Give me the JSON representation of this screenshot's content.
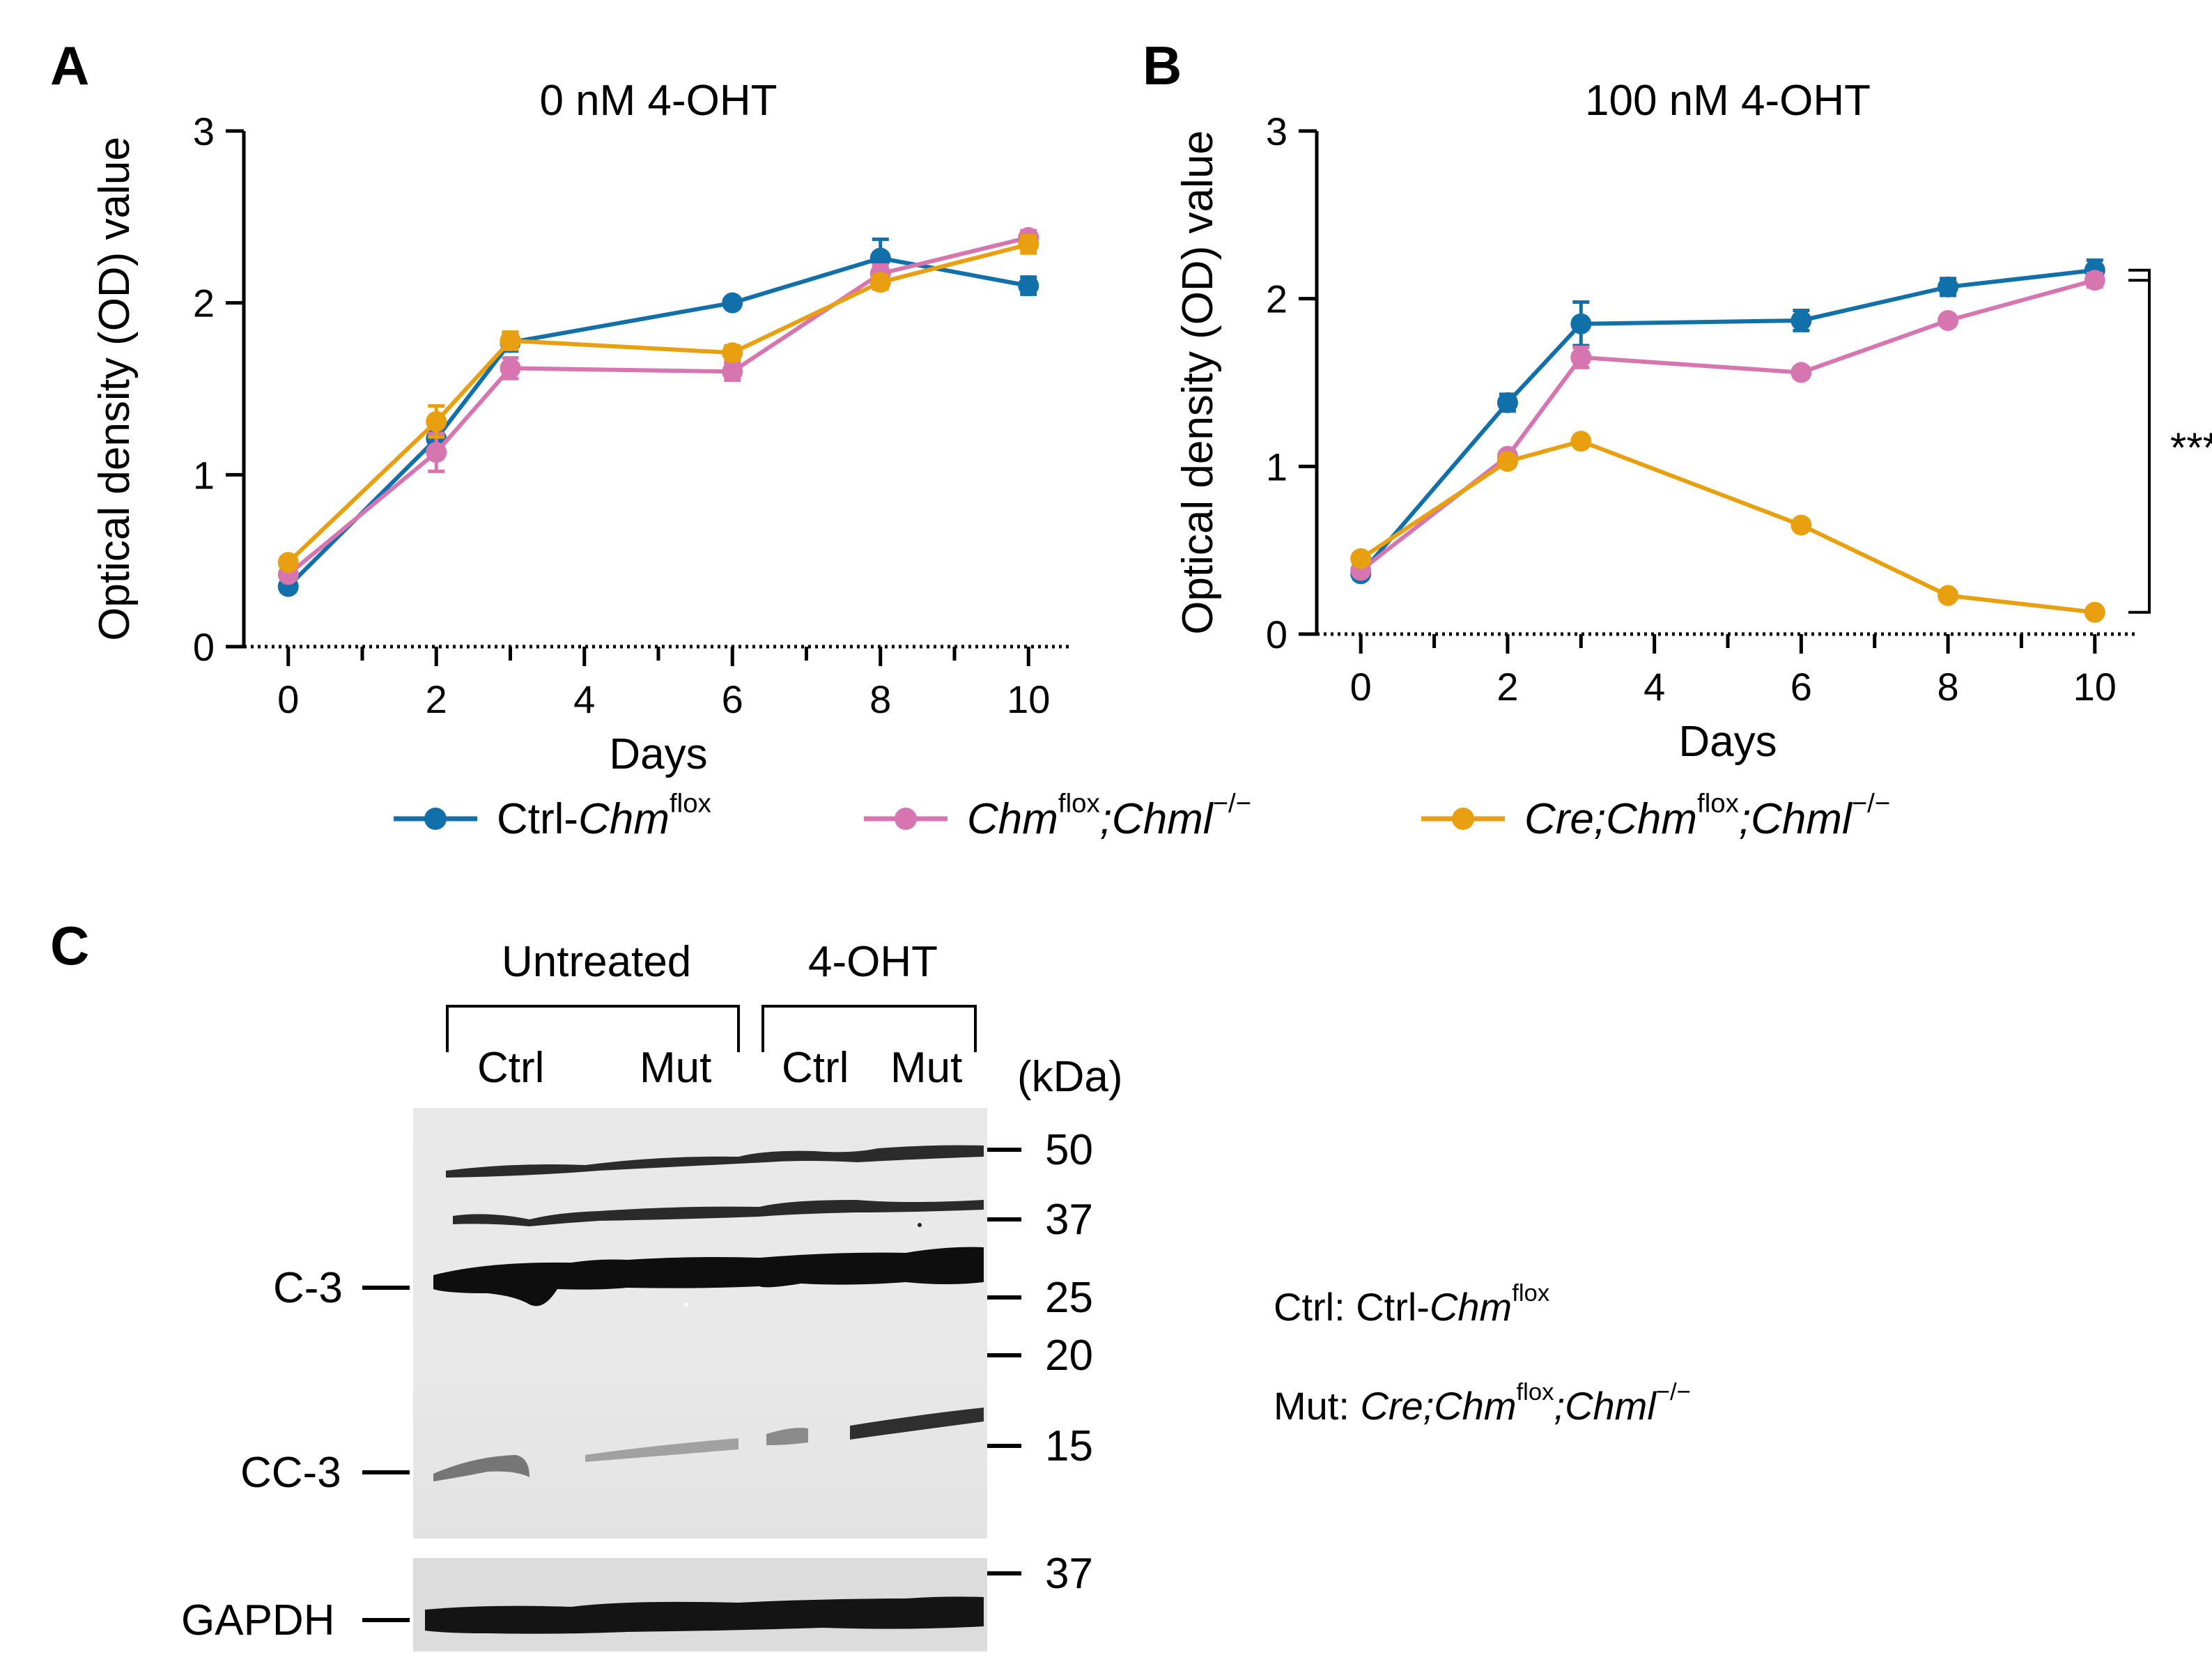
{
  "panels": {
    "a": "A",
    "b": "B",
    "c": "C"
  },
  "chart_data": [
    {
      "type": "line",
      "title": "0 nM 4-OHT",
      "xlabel": "Days",
      "ylabel": "Optical density (OD) value",
      "xlim": [
        -0.6,
        10.6
      ],
      "ylim": [
        0,
        3
      ],
      "xticks": [
        0,
        2,
        4,
        6,
        8,
        10
      ],
      "yticks": [
        0,
        1,
        2,
        3
      ],
      "x": [
        0,
        2,
        3,
        6,
        8,
        10
      ],
      "series": [
        {
          "name": "Ctrl-Chm flox",
          "color": "#1170aa",
          "values": [
            0.35,
            1.21,
            1.77,
            2.0,
            2.26,
            2.1
          ],
          "err": [
            0.03,
            0.1,
            0.05,
            0.02,
            0.11,
            0.05
          ]
        },
        {
          "name": "Chm flox;Chml −/−",
          "color": "#d675b0",
          "values": [
            0.42,
            1.13,
            1.62,
            1.6,
            2.17,
            2.38
          ],
          "err": [
            0.03,
            0.11,
            0.06,
            0.05,
            0.05,
            0.04
          ]
        },
        {
          "name": "Cre;Chm flox;Chml −/−",
          "color": "#e8a010",
          "values": [
            0.49,
            1.31,
            1.78,
            1.71,
            2.12,
            2.34
          ],
          "err": [
            0.03,
            0.09,
            0.05,
            0.04,
            0.04,
            0.05
          ]
        }
      ]
    },
    {
      "type": "line",
      "title": "100 nM 4-OHT",
      "xlabel": "Days",
      "ylabel": "Optical density (OD) value",
      "xlim": [
        -0.6,
        10.6
      ],
      "ylim": [
        0,
        3
      ],
      "xticks": [
        0,
        2,
        4,
        6,
        8,
        10
      ],
      "yticks": [
        0,
        1,
        2,
        3
      ],
      "x": [
        0,
        2,
        3,
        6,
        8,
        10
      ],
      "annotation": "***",
      "series": [
        {
          "name": "Ctrl-Chm flox",
          "color": "#1170aa",
          "values": [
            0.36,
            1.38,
            1.85,
            1.87,
            2.07,
            2.17
          ],
          "err": [
            0.03,
            0.05,
            0.13,
            0.06,
            0.05,
            0.06
          ]
        },
        {
          "name": "Chm flox;Chml −/−",
          "color": "#d675b0",
          "values": [
            0.38,
            1.06,
            1.65,
            1.56,
            1.87,
            2.11
          ],
          "err": [
            0.02,
            0.03,
            0.06,
            0.03,
            0.03,
            0.04
          ]
        },
        {
          "name": "Cre;Chm flox;Chml −/−",
          "color": "#e8a010",
          "values": [
            0.45,
            1.03,
            1.15,
            0.65,
            0.23,
            0.13
          ],
          "err": [
            0.02,
            0.03,
            0.02,
            0.02,
            0.02,
            0.01
          ]
        }
      ]
    }
  ],
  "legend": [
    {
      "pre": "Ctrl-",
      "gene": "Chm",
      "sup": "flox",
      "rest_italic": "",
      "rest_sup": ""
    },
    {
      "pre": "",
      "gene": "Chm",
      "sup": "flox",
      "rest_italic": ";Chml",
      "rest_sup": "−/−"
    },
    {
      "pre": "",
      "gene": "Cre;Chm",
      "sup": "flox",
      "rest_italic": ";Chml",
      "rest_sup": "−/−"
    }
  ],
  "blot": {
    "group_untreated": "Untreated",
    "group_treated": "4-OHT",
    "lanes": [
      "Ctrl",
      "Mut",
      "Ctrl",
      "Mut"
    ],
    "unit": "(kDa)",
    "markers": [
      "50",
      "37",
      "25",
      "20",
      "15"
    ],
    "gapdh_marker": "37",
    "band_c3": "C-3",
    "band_cc3": "CC-3",
    "band_gapdh": "GAPDH"
  },
  "notes": {
    "ctrl_label": "Ctrl: Ctrl-",
    "ctrl_gene": "Chm",
    "ctrl_sup": "flox",
    "mut_label": "Mut: ",
    "mut_gene": "Cre;Chm",
    "mut_sup": "flox",
    "mut_rest": ";Chml",
    "mut_rest_sup": "−/−"
  }
}
